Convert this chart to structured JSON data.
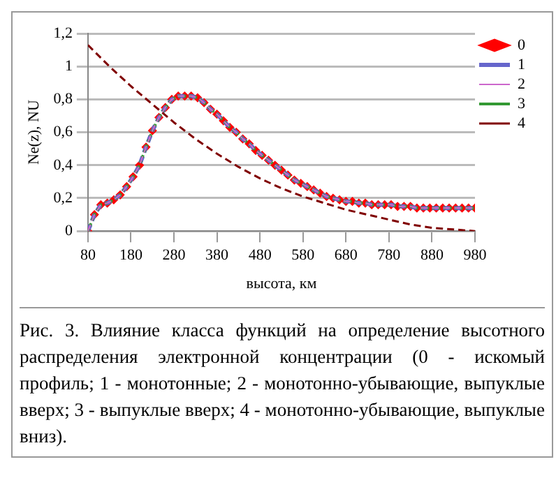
{
  "chart_data": {
    "type": "line",
    "xlabel": "высота, км",
    "ylabel": "Ne(z), NU",
    "annotations": [
      "Рис. 3. Влияние класса функций на определение высотного распределения электронной концентрации (0 - искомый профиль; 1 - монотонные; 2 - монотонно-убывающие, выпуклые вверх; 3 - выпуклые вверх; 4 - монотонно-убывающие, выпуклые вниз)."
    ],
    "x": [
      80,
      95,
      110,
      125,
      140,
      155,
      170,
      185,
      200,
      215,
      230,
      245,
      260,
      275,
      290,
      305,
      320,
      335,
      350,
      365,
      380,
      395,
      410,
      425,
      440,
      455,
      470,
      485,
      500,
      515,
      530,
      545,
      560,
      575,
      590,
      605,
      620,
      635,
      650,
      665,
      680,
      695,
      710,
      725,
      740,
      755,
      770,
      785,
      800,
      815,
      830,
      845,
      860,
      875,
      890,
      905,
      920,
      935,
      950,
      965,
      980
    ],
    "series": [
      {
        "name": "0",
        "color": "#ff0000",
        "type": "scatter",
        "marker": "diamond",
        "values": [
          0,
          0.1,
          0.16,
          0.17,
          0.19,
          0.22,
          0.27,
          0.33,
          0.4,
          0.51,
          0.61,
          0.69,
          0.75,
          0.8,
          0.82,
          0.82,
          0.82,
          0.81,
          0.78,
          0.74,
          0.71,
          0.67,
          0.63,
          0.6,
          0.56,
          0.53,
          0.49,
          0.46,
          0.43,
          0.4,
          0.37,
          0.34,
          0.31,
          0.29,
          0.27,
          0.25,
          0.23,
          0.21,
          0.2,
          0.19,
          0.18,
          0.18,
          0.17,
          0.17,
          0.16,
          0.16,
          0.16,
          0.16,
          0.15,
          0.15,
          0.15,
          0.14,
          0.14,
          0.14,
          0.14,
          0.14,
          0.14,
          0.14,
          0.14,
          0.14,
          0.14
        ]
      },
      {
        "name": "1",
        "color": "#6666cc",
        "line_style": "dashed",
        "values": [
          0,
          0.1,
          0.16,
          0.17,
          0.19,
          0.22,
          0.27,
          0.33,
          0.4,
          0.51,
          0.61,
          0.69,
          0.75,
          0.8,
          0.82,
          0.82,
          0.82,
          0.81,
          0.78,
          0.74,
          0.71,
          0.67,
          0.63,
          0.6,
          0.56,
          0.53,
          0.49,
          0.46,
          0.43,
          0.4,
          0.37,
          0.34,
          0.31,
          0.29,
          0.27,
          0.25,
          0.23,
          0.21,
          0.2,
          0.19,
          0.18,
          0.18,
          0.17,
          0.17,
          0.16,
          0.16,
          0.16,
          0.16,
          0.15,
          0.15,
          0.15,
          0.14,
          0.14,
          0.14,
          0.14,
          0.14,
          0.14,
          0.14,
          0.14,
          0.14,
          0.14
        ]
      },
      {
        "name": "2",
        "color": "#cc66cc",
        "line_style": "dashed",
        "values": [
          0,
          0.1,
          0.16,
          0.17,
          0.19,
          0.22,
          0.27,
          0.33,
          0.4,
          0.51,
          0.61,
          0.69,
          0.75,
          0.8,
          0.82,
          0.82,
          0.82,
          0.81,
          0.78,
          0.74,
          0.71,
          0.67,
          0.63,
          0.6,
          0.56,
          0.53,
          0.49,
          0.46,
          0.43,
          0.4,
          0.37,
          0.34,
          0.31,
          0.29,
          0.27,
          0.25,
          0.23,
          0.21,
          0.2,
          0.19,
          0.18,
          0.18,
          0.17,
          0.17,
          0.16,
          0.16,
          0.16,
          0.16,
          0.15,
          0.15,
          0.15,
          0.14,
          0.14,
          0.14,
          0.14,
          0.14,
          0.14,
          0.14,
          0.14,
          0.14,
          0.14
        ]
      },
      {
        "name": "3",
        "color": "#339933",
        "line_style": "dotted",
        "values": [
          0,
          0.1,
          0.16,
          0.17,
          0.19,
          0.22,
          0.27,
          0.33,
          0.4,
          0.51,
          0.61,
          0.69,
          0.75,
          0.8,
          0.82,
          0.82,
          0.82,
          0.81,
          0.78,
          0.74,
          0.71,
          0.67,
          0.63,
          0.6,
          0.56,
          0.53,
          0.49,
          0.46,
          0.43,
          0.4,
          0.37,
          0.34,
          0.31,
          0.29,
          0.27,
          0.25,
          0.23,
          0.21,
          0.2,
          0.19,
          0.18,
          0.18,
          0.17,
          0.17,
          0.16,
          0.16,
          0.16,
          0.16,
          0.15,
          0.15,
          0.15,
          0.14,
          0.14,
          0.14,
          0.14,
          0.14,
          0.14,
          0.14,
          0.14,
          0.14,
          0.14
        ]
      },
      {
        "name": "4",
        "color": "#800000",
        "line_style": "dashed",
        "x": [
          80,
          130,
          180,
          230,
          280,
          330,
          380,
          430,
          480,
          530,
          580,
          630,
          680,
          730,
          780,
          830,
          880,
          930,
          980
        ],
        "values": [
          1.13,
          1.0,
          0.88,
          0.77,
          0.66,
          0.56,
          0.47,
          0.39,
          0.32,
          0.26,
          0.21,
          0.17,
          0.13,
          0.1,
          0.07,
          0.04,
          0.02,
          0.01,
          0
        ]
      }
    ],
    "xlim": [
      80,
      980
    ],
    "xticks": [
      80,
      180,
      280,
      380,
      480,
      580,
      680,
      780,
      880,
      980
    ],
    "ylim": [
      0,
      1.2
    ],
    "yticks": [
      0,
      {
        "value": 0.2,
        "label": "0,2"
      },
      {
        "value": 0.4,
        "label": "0,4"
      },
      {
        "value": 0.6,
        "label": "0,6"
      },
      {
        "value": 0.8,
        "label": "0,8"
      },
      1,
      {
        "value": 1.2,
        "label": "1,2"
      }
    ],
    "grid": "y",
    "legend": "right"
  }
}
